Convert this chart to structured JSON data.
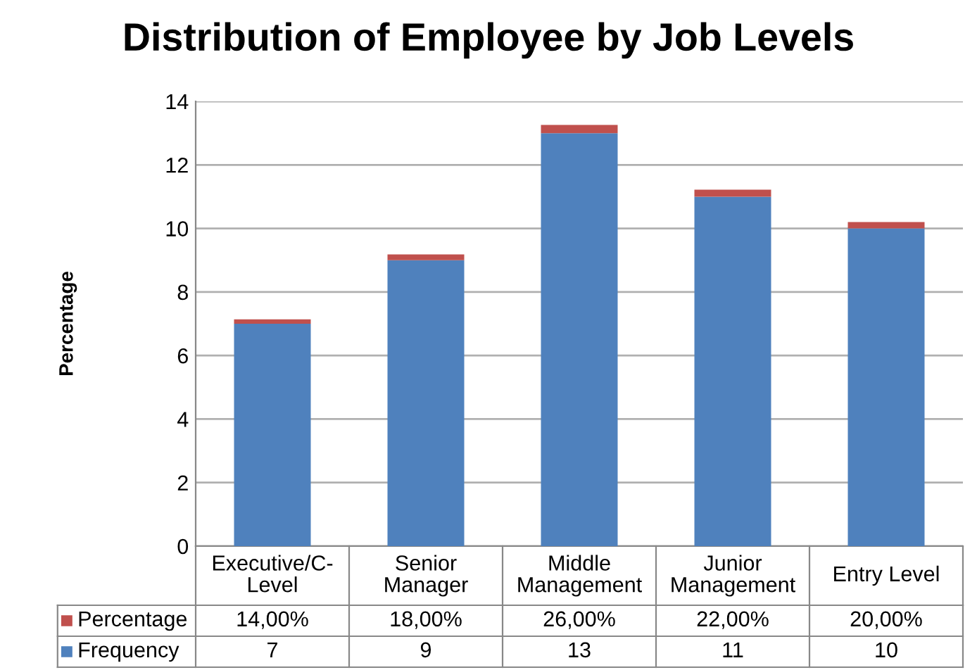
{
  "chart_data": {
    "type": "bar",
    "title": "Distribution of Employee by Job Levels",
    "ylabel": "Percentage",
    "stacked": true,
    "categories": [
      "Executive/C-\nLevel",
      "Senior\nManager",
      "Middle\nManagement",
      "Junior\nManagement",
      "Entry Level"
    ],
    "series": [
      {
        "name": "Frequency",
        "color": "#4f81bd",
        "values": [
          7,
          9,
          13,
          11,
          10
        ],
        "value_labels": [
          "7",
          "9",
          "13",
          "11",
          "10"
        ]
      },
      {
        "name": "Percentage",
        "color": "#c0504d",
        "values": [
          0.14,
          0.18,
          0.26,
          0.22,
          0.2
        ],
        "value_labels": [
          "14,00%",
          "18,00%",
          "26,00%",
          "22,00%",
          "20,00%"
        ]
      }
    ],
    "ylim": [
      0,
      14
    ],
    "yticks": [
      0,
      2,
      4,
      6,
      8,
      10,
      12,
      14
    ],
    "grid": "y",
    "legend": "bottom"
  }
}
